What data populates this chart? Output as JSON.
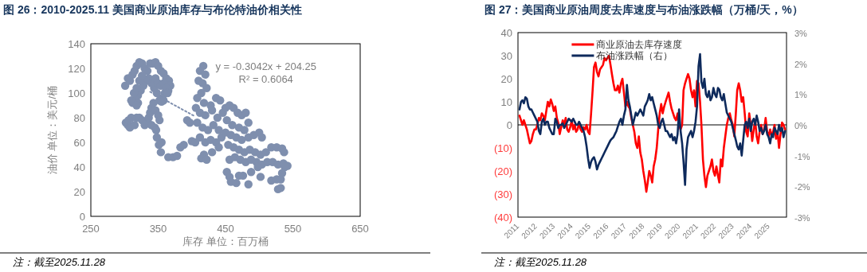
{
  "chart_data": [
    {
      "type": "scatter",
      "title": "图 26：2010-2025.11 美国商业原油库存与布伦特油价相关性",
      "xlabel": "库存 单位：百万桶",
      "ylabel": "油价 单位：美元/桶",
      "xlim": [
        250,
        650
      ],
      "xticks": [
        250,
        350,
        450,
        550,
        650
      ],
      "ylim": [
        0,
        140
      ],
      "yticks": [
        0,
        20,
        40,
        60,
        80,
        100,
        120,
        140
      ],
      "annotations": [
        "y = -0.3042x + 204.25",
        "R² = 0.6064",
        "注：截至2025.11.28"
      ],
      "series": [
        {
          "color": "#7f8fae",
          "marker": "circle",
          "x": [
            301,
            305,
            308,
            312,
            315,
            318,
            322,
            326,
            330,
            334,
            338,
            342,
            346,
            350,
            354,
            358,
            362,
            366,
            368,
            365,
            360,
            356,
            352,
            348,
            344,
            340,
            336,
            332,
            328,
            324,
            320,
            316,
            312,
            310,
            314,
            318,
            322,
            326,
            346,
            350,
            354,
            358,
            362,
            364,
            358,
            355,
            320,
            318,
            302,
            305,
            308,
            315,
            318,
            322,
            326,
            330,
            334,
            336,
            338,
            340,
            343,
            346,
            350,
            352,
            345,
            340,
            310,
            306,
            347,
            348,
            351,
            355,
            354,
            365,
            372,
            378,
            383,
            388,
            393,
            397,
            400,
            405,
            417,
            412,
            420,
            410,
            416,
            422,
            414,
            408,
            418,
            428,
            436,
            442,
            406,
            412,
            420,
            430,
            438,
            446,
            408,
            416,
            424,
            432,
            440,
            412,
            420,
            428,
            436,
            444,
            418,
            414,
            422,
            430,
            440,
            450,
            456,
            462,
            468,
            474,
            480,
            484,
            452,
            460,
            470,
            478,
            450,
            458,
            466,
            474,
            484,
            492,
            500,
            504,
            454,
            462,
            470,
            478,
            486,
            494,
            502,
            510,
            518,
            526,
            534,
            537,
            456,
            464,
            472,
            480,
            488,
            496,
            504,
            512,
            520,
            528,
            536,
            542,
            538,
            452,
            456,
            458,
            466,
            470,
            476,
            484,
            488,
            498,
            502,
            518,
            526,
            532,
            534,
            528,
            532
          ],
          "values": [
            106,
            112,
            110,
            115,
            118,
            122,
            125,
            124,
            120,
            118,
            124,
            124,
            125,
            122,
            118,
            116,
            112,
            110,
            106,
            102,
            100,
            96,
            94,
            100,
            104,
            108,
            112,
            110,
            106,
            102,
            98,
            95,
            92,
            94,
            100,
            104,
            110,
            114,
            112,
            108,
            106,
            108,
            104,
            100,
            94,
            93,
            92,
            90,
            76,
            74,
            72,
            74,
            80,
            80,
            78,
            74,
            76,
            80,
            84,
            88,
            92,
            86,
            82,
            78,
            72,
            74,
            80,
            78,
            70,
            64,
            58,
            60,
            52,
            48,
            48,
            49,
            56,
            58,
            78,
            76,
            61,
            60,
            122,
            118,
            115,
            110,
            108,
            104,
            100,
            96,
            92,
            90,
            96,
            94,
            88,
            84,
            82,
            86,
            80,
            84,
            76,
            72,
            70,
            74,
            70,
            64,
            60,
            62,
            60,
            64,
            50,
            47,
            46,
            52,
            56,
            88,
            90,
            88,
            84,
            82,
            84,
            76,
            78,
            74,
            72,
            70,
            68,
            66,
            64,
            62,
            64,
            66,
            68,
            64,
            58,
            56,
            54,
            52,
            54,
            52,
            50,
            52,
            56,
            56,
            55,
            52,
            46,
            48,
            46,
            44,
            46,
            44,
            42,
            44,
            44,
            42,
            43,
            41,
            40,
            36,
            32,
            28,
            27,
            33,
            33,
            26,
            36,
            40,
            32,
            29,
            30,
            30,
            35,
            22,
            23
          ]
        },
        {
          "type": "line",
          "color": "#7f8fae",
          "line_style": "dotted",
          "x": [
            338,
            405
          ],
          "values": [
            101,
            81
          ]
        }
      ]
    },
    {
      "type": "line",
      "title": "图 27：美国商业原油周度去库速度与布油涨跌幅（万桶/天，%）",
      "legend": "top",
      "xlim": [
        "2010-12",
        "2025-12"
      ],
      "xticks": [
        "2011",
        "2012",
        "2013",
        "2014",
        "2015",
        "2016",
        "2017",
        "2018",
        "2019",
        "2020",
        "2021",
        "2022",
        "2023",
        "2024",
        "2025"
      ],
      "ylim": [
        -40,
        40
      ],
      "yticks": [
        {
          "value": -40,
          "label": "(40)"
        },
        {
          "value": -30,
          "label": "(30)"
        },
        {
          "value": -20,
          "label": "(20)"
        },
        {
          "value": -10,
          "label": "(10)"
        },
        0,
        10,
        20,
        30,
        40
      ],
      "y2lim": [
        -3,
        3
      ],
      "y2ticks": [
        {
          "value": -3,
          "label": "-3%"
        },
        {
          "value": -2,
          "label": "-2%"
        },
        {
          "value": -1,
          "label": "-1%"
        },
        {
          "value": 0,
          "label": "0%"
        },
        {
          "value": 1,
          "label": "1%"
        },
        {
          "value": 2,
          "label": "2%"
        },
        {
          "value": 3,
          "label": "3%"
        }
      ],
      "ref_lines": [
        {
          "axis": "y",
          "value": 0,
          "color": "#000000"
        }
      ],
      "annotations": [
        "注：截至2025.11.28"
      ],
      "x": [
        "2011-01",
        "2011-02",
        "2011-03",
        "2011-04",
        "2011-05",
        "2011-06",
        "2011-07",
        "2011-08",
        "2011-09",
        "2011-10",
        "2011-11",
        "2011-12",
        "2012-01",
        "2012-02",
        "2012-03",
        "2012-04",
        "2012-05",
        "2012-06",
        "2012-07",
        "2012-08",
        "2012-09",
        "2012-10",
        "2012-11",
        "2012-12",
        "2013-01",
        "2013-02",
        "2013-03",
        "2013-04",
        "2013-05",
        "2013-06",
        "2013-07",
        "2013-08",
        "2013-09",
        "2013-10",
        "2013-11",
        "2013-12",
        "2014-01",
        "2014-02",
        "2014-03",
        "2014-04",
        "2014-05",
        "2014-06",
        "2014-07",
        "2014-08",
        "2014-09",
        "2014-10",
        "2014-11",
        "2014-12",
        "2015-01",
        "2015-02",
        "2015-03",
        "2015-04",
        "2015-05",
        "2015-06",
        "2015-07",
        "2015-08",
        "2015-09",
        "2015-10",
        "2015-11",
        "2015-12",
        "2016-01",
        "2016-02",
        "2016-03",
        "2016-04",
        "2016-05",
        "2016-06",
        "2016-07",
        "2016-08",
        "2016-09",
        "2016-10",
        "2016-11",
        "2016-12",
        "2017-01",
        "2017-02",
        "2017-03",
        "2017-04",
        "2017-05",
        "2017-06",
        "2017-07",
        "2017-08",
        "2017-09",
        "2017-10",
        "2017-11",
        "2017-12",
        "2018-01",
        "2018-02",
        "2018-03",
        "2018-04",
        "2018-05",
        "2018-06",
        "2018-07",
        "2018-08",
        "2018-09",
        "2018-10",
        "2018-11",
        "2018-12",
        "2019-01",
        "2019-02",
        "2019-03",
        "2019-04",
        "2019-05",
        "2019-06",
        "2019-07",
        "2019-08",
        "2019-09",
        "2019-10",
        "2019-11",
        "2019-12",
        "2020-01",
        "2020-02",
        "2020-03",
        "2020-04",
        "2020-05",
        "2020-06",
        "2020-07",
        "2020-08",
        "2020-09",
        "2020-10",
        "2020-11",
        "2020-12",
        "2021-01",
        "2021-02",
        "2021-03",
        "2021-04",
        "2021-05",
        "2021-06",
        "2021-07",
        "2021-08",
        "2021-09",
        "2021-10",
        "2021-11",
        "2021-12",
        "2022-01",
        "2022-02",
        "2022-03",
        "2022-04",
        "2022-05",
        "2022-06",
        "2022-07",
        "2022-08",
        "2022-09",
        "2022-10",
        "2022-11",
        "2022-12",
        "2023-01",
        "2023-02",
        "2023-03",
        "2023-04",
        "2023-05",
        "2023-06",
        "2023-07",
        "2023-08",
        "2023-09",
        "2023-10",
        "2023-11",
        "2023-12",
        "2024-01",
        "2024-02",
        "2024-03",
        "2024-04",
        "2024-05",
        "2024-06",
        "2024-07",
        "2024-08",
        "2024-09",
        "2024-10",
        "2024-11",
        "2024-12",
        "2025-01",
        "2025-02",
        "2025-03",
        "2025-04",
        "2025-05",
        "2025-06",
        "2025-07",
        "2025-08",
        "2025-09",
        "2025-10",
        "2025-11"
      ],
      "series": [
        {
          "name": "商业原油去库存速度",
          "color": "#ff0000",
          "values": [
            4,
            2,
            0,
            2,
            0,
            -2,
            -5,
            -8,
            -7,
            -4,
            -2,
            -2,
            0,
            3,
            2,
            5,
            4,
            2,
            6,
            10,
            8,
            11,
            9,
            6,
            8,
            3,
            1,
            -4,
            -1,
            2,
            0,
            3,
            -2,
            -3,
            -1,
            2,
            -2,
            0,
            -3,
            -2,
            1,
            -2,
            -3,
            -1,
            -2,
            0,
            -3,
            -4,
            5,
            15,
            25,
            27,
            23,
            21,
            24,
            25,
            26,
            29,
            28,
            29,
            30,
            26,
            22,
            18,
            15,
            15,
            17,
            14,
            18,
            20,
            14,
            8,
            10,
            8,
            7,
            3,
            0,
            -3,
            -8,
            -10,
            -5,
            -12,
            -15,
            -20,
            -24,
            -29,
            -25,
            -20,
            -22,
            -25,
            -18,
            -15,
            -10,
            -2,
            5,
            9,
            5,
            8,
            10,
            12,
            14,
            10,
            7,
            5,
            3,
            2,
            5,
            0,
            -2,
            0,
            15,
            18,
            20,
            22,
            20,
            15,
            12,
            15,
            8,
            19,
            18,
            10,
            0,
            -15,
            -22,
            -27,
            -22,
            -20,
            -18,
            -15,
            -20,
            -22,
            -18,
            -22,
            -25,
            -15,
            -18,
            -10,
            -5,
            0,
            3,
            5,
            2,
            0,
            -5,
            5,
            15,
            18,
            15,
            10,
            12,
            5,
            -3,
            -5,
            5,
            0,
            -7,
            -2,
            2,
            -5,
            -8,
            -3,
            0,
            -4,
            -2,
            3,
            -3,
            -5,
            -2,
            -5,
            -3,
            0,
            -6,
            -3,
            -10,
            -4,
            1,
            0,
            -2
          ]
        },
        {
          "name": "布油涨跌幅（右）",
          "color": "#0e2a5c",
          "axis": "y2",
          "values": [
            0.5,
            0.75,
            0.8,
            0.7,
            0.9,
            0.85,
            0.6,
            0.5,
            0.5,
            0.4,
            0.3,
            0.2,
            0.1,
            -0.2,
            -0.3,
            0.1,
            0.2,
            0,
            0.1,
            0.1,
            -0.1,
            -0.2,
            -0.3,
            -0.3,
            0.2,
            0.1,
            -0.1,
            0,
            0,
            0.05,
            -0.1,
            0,
            0.1,
            0.2,
            0.15,
            0.1,
            0.2,
            0.1,
            0,
            0,
            0.1,
            0,
            -0.1,
            -0.2,
            -0.4,
            -0.7,
            -1.1,
            -1.4,
            -1.2,
            -1.1,
            -1.05,
            -1.2,
            -1.45,
            -1.3,
            -1.2,
            -1.1,
            -1,
            -0.9,
            -0.8,
            -0.7,
            -0.6,
            -0.5,
            -0.45,
            -0.4,
            -0.3,
            -0.2,
            -0.05,
            0.1,
            0.2,
            0,
            0.3,
            0.5,
            1.3,
            0.8,
            0.6,
            0.3,
            0,
            0.2,
            0.4,
            0.3,
            0.4,
            0.5,
            0.4,
            0.3,
            0.6,
            0.7,
            0.8,
            1,
            0.8,
            0.9,
            0.7,
            0.5,
            0.3,
            0,
            -0.1,
            0.1,
            0.2,
            0,
            -0.2,
            -0.2,
            -0.3,
            -0.4,
            -0.3,
            -0.5,
            -0.4,
            -0.6,
            -0.3,
            0.5,
            -0.2,
            -0.6,
            -1.2,
            -1.95,
            -0.8,
            -0.4,
            -0.3,
            -0.2,
            -0.4,
            -0.2,
            0.1,
            0.6,
            1.9,
            2.3,
            1.4,
            1.2,
            1.5,
            1,
            0.9,
            1.1,
            0.8,
            0.9,
            1.2,
            1,
            0.9,
            1.2,
            1.15,
            0.9,
            0.8,
            1,
            0.7,
            0.4,
            0.3,
            0.2,
            0.1,
            -0.1,
            -0.3,
            -0.5,
            -0.7,
            -0.8,
            -0.6,
            -1,
            -0.5,
            0,
            0.1,
            -0.1,
            0.2,
            -0.2,
            0.1,
            0.2,
            0,
            0.3,
            0.1,
            -0.2,
            -0.1,
            -0.3,
            -0.2,
            0,
            -0.3,
            -0.4,
            -0.6,
            -0.3,
            -0.4,
            -0.1,
            -0.2,
            -0.3,
            0,
            -0.2,
            -0.1,
            -0.4,
            -0.2
          ]
        }
      ]
    }
  ]
}
